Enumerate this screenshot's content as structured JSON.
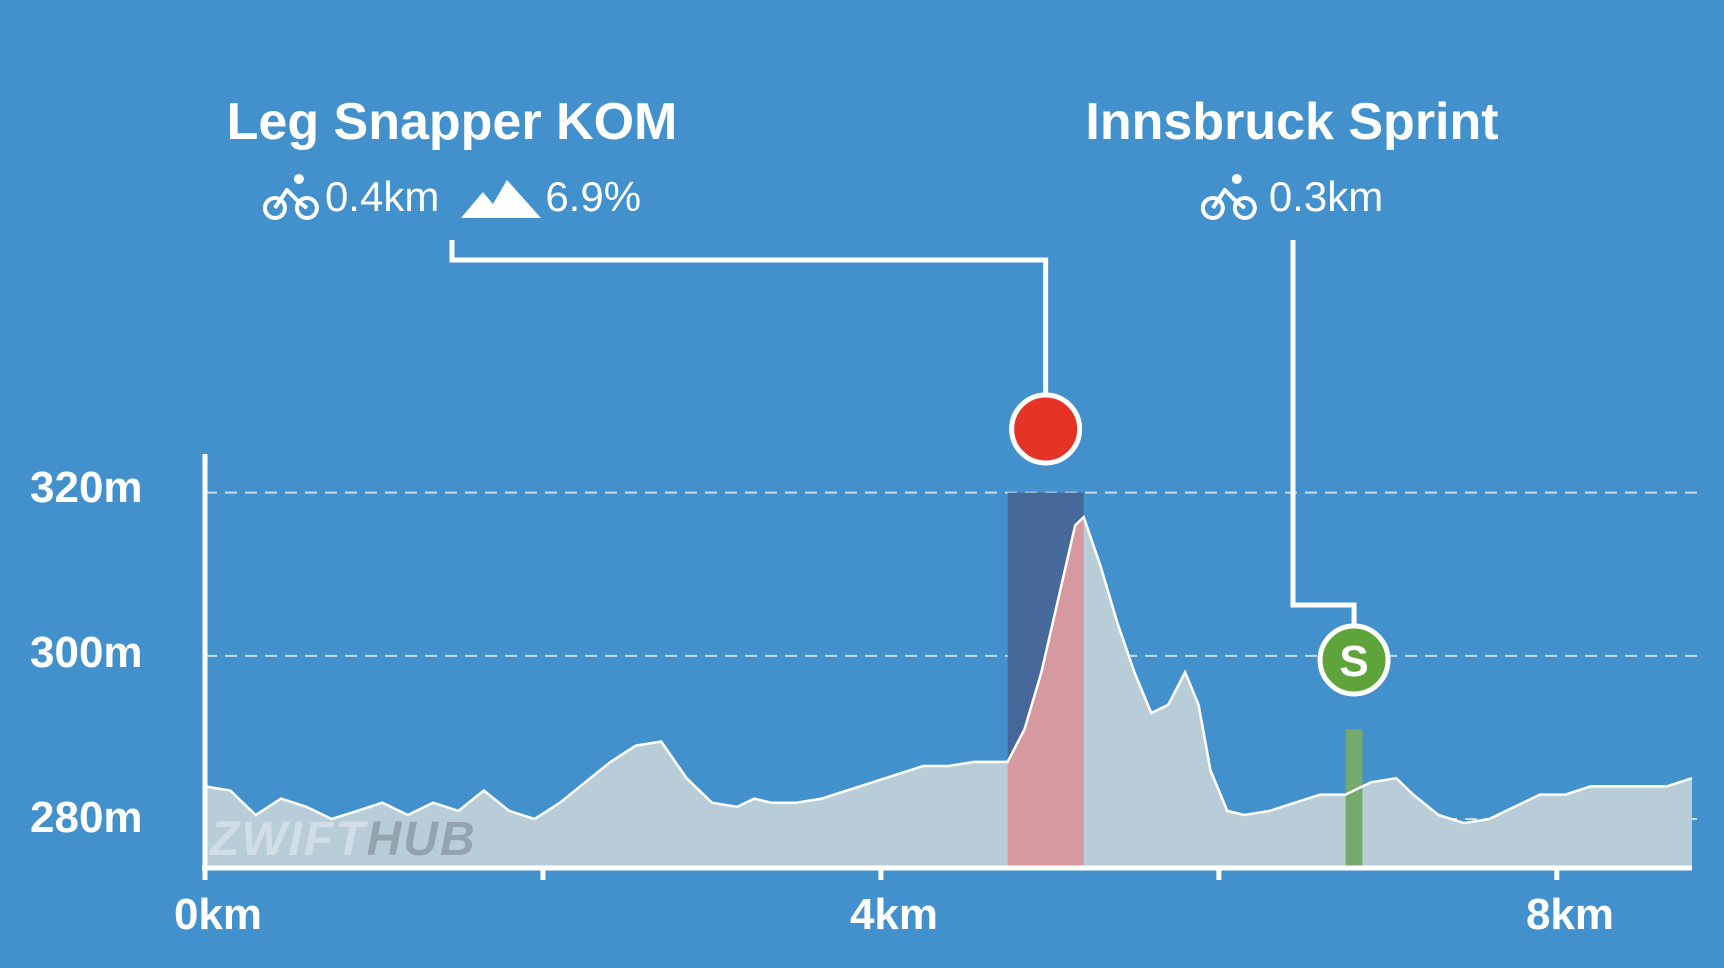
{
  "segments": [
    {
      "title": "Leg Snapper KOM",
      "distance": "0.4km",
      "grade": "6.9%",
      "type": "kom",
      "start_km": 4.75,
      "end_km": 5.2,
      "color": "#e53425",
      "band_color": "#47689a",
      "highlight_color": "#d799a0"
    },
    {
      "title": "Innsbruck Sprint",
      "distance": "0.3km",
      "type": "sprint",
      "marker_letter": "S",
      "start_km": 6.75,
      "end_km": 6.85,
      "color": "#5fa43a",
      "band_color": "#74ab6c"
    }
  ],
  "watermark": {
    "part1": "ZWIFT",
    "part2": "HUB"
  },
  "colors": {
    "background": "#4290cc",
    "profile_fill": "#b9cdd8",
    "profile_stroke": "#ffffff",
    "axis": "#ffffff",
    "grid": "#d6e4f0"
  },
  "chart_data": {
    "type": "area",
    "title": "",
    "xlabel": "",
    "ylabel": "",
    "x_unit": "km",
    "y_unit": "m",
    "x_ticks": [
      {
        "value": 0,
        "label": "0km"
      },
      {
        "value": 2,
        "label": ""
      },
      {
        "value": 4,
        "label": "4km"
      },
      {
        "value": 6,
        "label": ""
      },
      {
        "value": 8,
        "label": "8km"
      }
    ],
    "y_ticks": [
      {
        "value": 280,
        "label": "280m"
      },
      {
        "value": 300,
        "label": "300m"
      },
      {
        "value": 320,
        "label": "320m"
      }
    ],
    "xlim": [
      0,
      8.8
    ],
    "ylim": [
      274,
      324
    ],
    "grid": "horizontal dashed",
    "series": [
      {
        "x": [
          0,
          0.15,
          0.3,
          0.45,
          0.6,
          0.75,
          0.9,
          1.05,
          1.2,
          1.35,
          1.5,
          1.65,
          1.8,
          1.95,
          2.1,
          2.25,
          2.4,
          2.55,
          2.7,
          2.85,
          3.0,
          3.15,
          3.25,
          3.35,
          3.5,
          3.65,
          3.8,
          3.95,
          4.1,
          4.25,
          4.4,
          4.55,
          4.7,
          4.75,
          4.85,
          4.95,
          5.05,
          5.15,
          5.2,
          5.3,
          5.4,
          5.5,
          5.6,
          5.7,
          5.8,
          5.88,
          5.95,
          6.05,
          6.15,
          6.3,
          6.45,
          6.6,
          6.75,
          6.9,
          7.05,
          7.15,
          7.3,
          7.45,
          7.6,
          7.75,
          7.9,
          8.05,
          8.2,
          8.35,
          8.5,
          8.65,
          8.8
        ],
        "y": [
          284,
          283.5,
          280.5,
          282.5,
          281.5,
          280,
          281,
          282,
          280.5,
          282,
          281,
          283.5,
          281,
          280,
          282,
          284.5,
          287,
          289,
          289.5,
          285,
          282,
          281.5,
          282.5,
          282,
          282,
          282.5,
          283.5,
          284.5,
          285.5,
          286.5,
          286.5,
          287,
          287,
          287,
          291,
          298,
          307,
          316,
          317,
          311,
          304,
          298,
          293,
          294,
          298,
          294,
          286,
          281,
          280.5,
          281,
          282,
          283,
          283,
          284.5,
          285,
          283,
          280.5,
          279.5,
          280,
          281.5,
          283,
          283,
          284,
          284,
          284,
          284,
          285
        ]
      }
    ]
  }
}
